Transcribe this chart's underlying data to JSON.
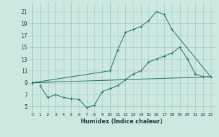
{
  "xlabel": "Humidex (Indice chaleur)",
  "ylabel": "",
  "xlim": [
    -0.5,
    23.5
  ],
  "ylim": [
    4,
    22.5
  ],
  "yticks": [
    5,
    7,
    9,
    11,
    13,
    15,
    17,
    19,
    21
  ],
  "xticks": [
    0,
    1,
    2,
    3,
    4,
    5,
    6,
    7,
    8,
    9,
    10,
    11,
    12,
    13,
    14,
    15,
    16,
    17,
    18,
    19,
    20,
    21,
    22,
    23
  ],
  "bg_color": "#cce8e0",
  "grid_color": "#9ec8be",
  "line_color": "#2e7b72",
  "line1_x": [
    0,
    10,
    11,
    12,
    13,
    14,
    15,
    16,
    17,
    18,
    23
  ],
  "line1_y": [
    9,
    11,
    14.5,
    17.5,
    18,
    18.5,
    19.5,
    21,
    20.5,
    18,
    10
  ],
  "line2_x": [
    0,
    23
  ],
  "line2_y": [
    9,
    10
  ],
  "line3_x": [
    1,
    2,
    3,
    4,
    5,
    6,
    7,
    8,
    9,
    10,
    11,
    12,
    13,
    14,
    15,
    16,
    17,
    18,
    19,
    20,
    21,
    22,
    23
  ],
  "line3_y": [
    8.5,
    6.5,
    7,
    6.5,
    6.3,
    6.2,
    4.8,
    5.2,
    7.5,
    8.0,
    8.5,
    9.5,
    10.5,
    11,
    12.5,
    13,
    13.5,
    14,
    15,
    13,
    10.5,
    10,
    10
  ]
}
